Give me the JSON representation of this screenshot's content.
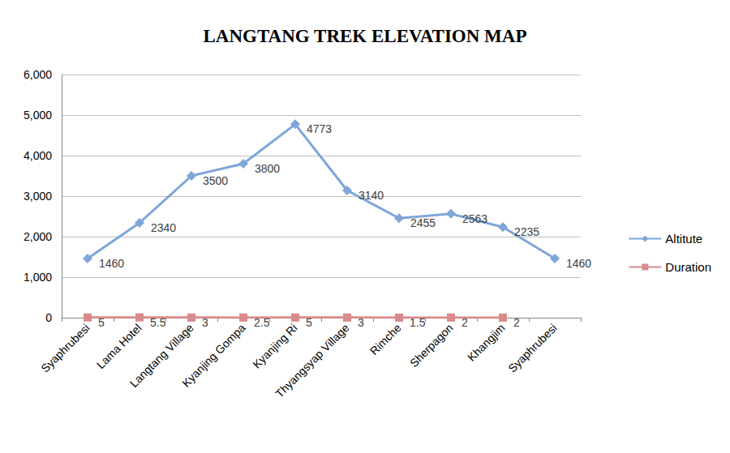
{
  "chart_data": {
    "type": "line",
    "title": "LANGTANG TREK ELEVATION MAP",
    "categories": [
      "Syaphrubesi",
      "Lama Hotel",
      "Langtang Village",
      "Kyanjing Gompa",
      "Kyanjing Ri",
      "Thyangsyap Village",
      "Rimche",
      "Sherpagon",
      "Khangjim",
      "Syaphrubesi"
    ],
    "series": [
      {
        "name": "Altitute",
        "color": "#7ea6d8",
        "marker": "diamond",
        "line_style": "solid",
        "values": [
          1460,
          2340,
          3500,
          3800,
          4773,
          3140,
          2455,
          2563,
          2235,
          1460
        ]
      },
      {
        "name": "Duration",
        "color": "#d98a8a",
        "marker": "square",
        "line_style": "solid",
        "values": [
          5,
          5.5,
          3,
          2.5,
          5,
          3,
          1.5,
          2,
          2,
          null
        ]
      }
    ],
    "ylim": [
      0,
      6000
    ],
    "yticks": [
      0,
      1000,
      2000,
      3000,
      4000,
      5000,
      6000
    ],
    "grid": true,
    "legend": "right",
    "data_labels": true
  }
}
